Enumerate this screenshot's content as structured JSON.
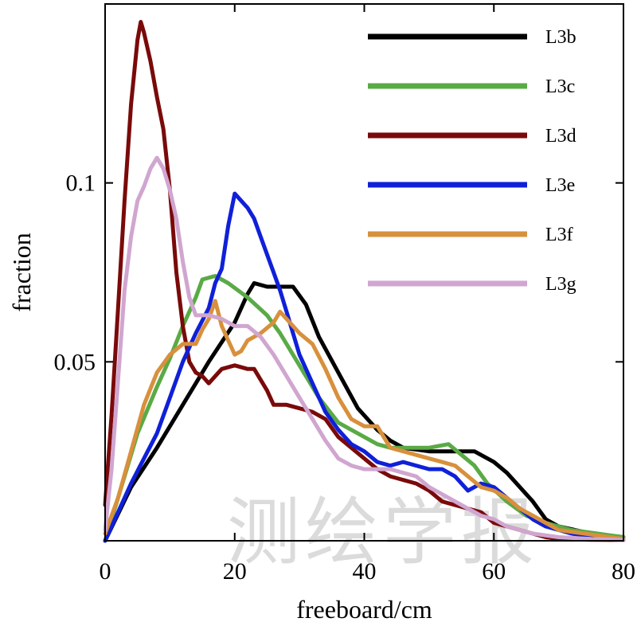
{
  "chart_data": {
    "type": "line",
    "title": "",
    "xlabel": "freeboard/cm",
    "ylabel": "fraction",
    "xlim": [
      0,
      80
    ],
    "ylim": [
      0,
      0.15
    ],
    "xticks": [
      0,
      20,
      40,
      60,
      80
    ],
    "yticks": [
      0.05,
      0.1
    ],
    "ytick_labels": [
      "0.05",
      "0.1"
    ],
    "grid": false,
    "legend_position": "top-right",
    "watermark": "测绘学报",
    "series": [
      {
        "name": "L3b",
        "color": "#000000",
        "points": [
          [
            0,
            0
          ],
          [
            4,
            0.015
          ],
          [
            8,
            0.026
          ],
          [
            12,
            0.038
          ],
          [
            16,
            0.05
          ],
          [
            20,
            0.061
          ],
          [
            22,
            0.069
          ],
          [
            23,
            0.072
          ],
          [
            25,
            0.071
          ],
          [
            27,
            0.071
          ],
          [
            29,
            0.071
          ],
          [
            31,
            0.066
          ],
          [
            33,
            0.057
          ],
          [
            36,
            0.047
          ],
          [
            39,
            0.037
          ],
          [
            42,
            0.031
          ],
          [
            44,
            0.028
          ],
          [
            46,
            0.026
          ],
          [
            50,
            0.025
          ],
          [
            52,
            0.025
          ],
          [
            55,
            0.025
          ],
          [
            57,
            0.025
          ],
          [
            60,
            0.022
          ],
          [
            62,
            0.019
          ],
          [
            64,
            0.015
          ],
          [
            66,
            0.011
          ],
          [
            68,
            0.006
          ],
          [
            70,
            0.004
          ],
          [
            75,
            0.002
          ],
          [
            80,
            0.001
          ]
        ]
      },
      {
        "name": "L3c",
        "color": "#5aaa46",
        "points": [
          [
            0,
            0
          ],
          [
            2,
            0.012
          ],
          [
            5,
            0.03
          ],
          [
            8,
            0.043
          ],
          [
            10,
            0.051
          ],
          [
            12,
            0.06
          ],
          [
            14,
            0.068
          ],
          [
            15,
            0.073
          ],
          [
            17,
            0.074
          ],
          [
            19,
            0.072
          ],
          [
            22,
            0.068
          ],
          [
            25,
            0.063
          ],
          [
            27,
            0.058
          ],
          [
            30,
            0.049
          ],
          [
            33,
            0.04
          ],
          [
            36,
            0.033
          ],
          [
            39,
            0.03
          ],
          [
            42,
            0.027
          ],
          [
            44,
            0.026
          ],
          [
            46,
            0.026
          ],
          [
            48,
            0.026
          ],
          [
            50,
            0.026
          ],
          [
            53,
            0.027
          ],
          [
            55,
            0.024
          ],
          [
            57,
            0.021
          ],
          [
            59,
            0.016
          ],
          [
            62,
            0.011
          ],
          [
            65,
            0.007
          ],
          [
            68,
            0.005
          ],
          [
            72,
            0.003
          ],
          [
            76,
            0.002
          ],
          [
            80,
            0.001
          ]
        ]
      },
      {
        "name": "L3d",
        "color": "#7a0a0a",
        "points": [
          [
            0,
            0.01
          ],
          [
            1,
            0.035
          ],
          [
            2,
            0.065
          ],
          [
            3,
            0.095
          ],
          [
            4,
            0.122
          ],
          [
            5,
            0.14
          ],
          [
            5.5,
            0.145
          ],
          [
            6,
            0.142
          ],
          [
            7,
            0.134
          ],
          [
            8,
            0.124
          ],
          [
            9,
            0.115
          ],
          [
            10,
            0.098
          ],
          [
            11,
            0.075
          ],
          [
            12,
            0.06
          ],
          [
            13,
            0.05
          ],
          [
            14,
            0.047
          ],
          [
            15,
            0.046
          ],
          [
            16,
            0.044
          ],
          [
            17,
            0.046
          ],
          [
            18,
            0.048
          ],
          [
            20,
            0.049
          ],
          [
            22,
            0.048
          ],
          [
            23,
            0.048
          ],
          [
            25,
            0.042
          ],
          [
            26,
            0.038
          ],
          [
            28,
            0.038
          ],
          [
            30,
            0.037
          ],
          [
            32,
            0.036
          ],
          [
            34,
            0.034
          ],
          [
            36,
            0.029
          ],
          [
            38,
            0.026
          ],
          [
            40,
            0.023
          ],
          [
            42,
            0.02
          ],
          [
            44,
            0.018
          ],
          [
            46,
            0.017
          ],
          [
            48,
            0.016
          ],
          [
            50,
            0.014
          ],
          [
            52,
            0.011
          ],
          [
            54,
            0.01
          ],
          [
            56,
            0.009
          ],
          [
            58,
            0.008
          ],
          [
            60,
            0.005
          ],
          [
            62,
            0.004
          ],
          [
            64,
            0.003
          ],
          [
            66,
            0.002
          ],
          [
            68,
            0.001
          ],
          [
            70,
            0.0005
          ],
          [
            75,
            0.0003
          ],
          [
            80,
            0.0002
          ]
        ]
      },
      {
        "name": "L3e",
        "color": "#1020d8",
        "points": [
          [
            0,
            0
          ],
          [
            2,
            0.008
          ],
          [
            4,
            0.016
          ],
          [
            6,
            0.023
          ],
          [
            8,
            0.03
          ],
          [
            10,
            0.04
          ],
          [
            12,
            0.05
          ],
          [
            14,
            0.058
          ],
          [
            16,
            0.065
          ],
          [
            17,
            0.072
          ],
          [
            18,
            0.076
          ],
          [
            19,
            0.088
          ],
          [
            20,
            0.097
          ],
          [
            21,
            0.095
          ],
          [
            22,
            0.093
          ],
          [
            23,
            0.09
          ],
          [
            24,
            0.085
          ],
          [
            25,
            0.08
          ],
          [
            26,
            0.075
          ],
          [
            27,
            0.07
          ],
          [
            28,
            0.064
          ],
          [
            29,
            0.058
          ],
          [
            30,
            0.052
          ],
          [
            32,
            0.044
          ],
          [
            34,
            0.036
          ],
          [
            36,
            0.031
          ],
          [
            38,
            0.027
          ],
          [
            40,
            0.025
          ],
          [
            42,
            0.022
          ],
          [
            44,
            0.021
          ],
          [
            46,
            0.022
          ],
          [
            48,
            0.021
          ],
          [
            50,
            0.02
          ],
          [
            52,
            0.02
          ],
          [
            54,
            0.018
          ],
          [
            56,
            0.014
          ],
          [
            58,
            0.016
          ],
          [
            60,
            0.015
          ],
          [
            62,
            0.012
          ],
          [
            64,
            0.009
          ],
          [
            66,
            0.006
          ],
          [
            68,
            0.004
          ],
          [
            72,
            0.002
          ],
          [
            76,
            0.001
          ],
          [
            80,
            0.0003
          ]
        ]
      },
      {
        "name": "L3f",
        "color": "#d8903c",
        "points": [
          [
            0,
            0.002
          ],
          [
            2,
            0.012
          ],
          [
            4,
            0.025
          ],
          [
            6,
            0.038
          ],
          [
            8,
            0.047
          ],
          [
            10,
            0.052
          ],
          [
            12,
            0.055
          ],
          [
            14,
            0.055
          ],
          [
            15,
            0.059
          ],
          [
            16,
            0.062
          ],
          [
            17,
            0.067
          ],
          [
            18,
            0.06
          ],
          [
            19,
            0.056
          ],
          [
            20,
            0.052
          ],
          [
            21,
            0.053
          ],
          [
            22,
            0.056
          ],
          [
            24,
            0.058
          ],
          [
            26,
            0.061
          ],
          [
            27,
            0.064
          ],
          [
            28,
            0.062
          ],
          [
            30,
            0.058
          ],
          [
            32,
            0.055
          ],
          [
            34,
            0.048
          ],
          [
            36,
            0.04
          ],
          [
            38,
            0.034
          ],
          [
            40,
            0.032
          ],
          [
            42,
            0.032
          ],
          [
            44,
            0.026
          ],
          [
            46,
            0.025
          ],
          [
            48,
            0.024
          ],
          [
            50,
            0.023
          ],
          [
            52,
            0.022
          ],
          [
            54,
            0.021
          ],
          [
            56,
            0.018
          ],
          [
            58,
            0.015
          ],
          [
            60,
            0.014
          ],
          [
            62,
            0.012
          ],
          [
            64,
            0.009
          ],
          [
            66,
            0.007
          ],
          [
            68,
            0.005
          ],
          [
            70,
            0.003
          ],
          [
            74,
            0.002
          ],
          [
            78,
            0.001
          ],
          [
            80,
            0.0005
          ]
        ]
      },
      {
        "name": "L3g",
        "color": "#d0a6d0",
        "points": [
          [
            0,
            0.003
          ],
          [
            1,
            0.02
          ],
          [
            2,
            0.045
          ],
          [
            3,
            0.07
          ],
          [
            4,
            0.085
          ],
          [
            5,
            0.095
          ],
          [
            6,
            0.099
          ],
          [
            7,
            0.104
          ],
          [
            8,
            0.107
          ],
          [
            9,
            0.104
          ],
          [
            10,
            0.098
          ],
          [
            11,
            0.09
          ],
          [
            12,
            0.078
          ],
          [
            13,
            0.068
          ],
          [
            14,
            0.063
          ],
          [
            16,
            0.063
          ],
          [
            18,
            0.062
          ],
          [
            20,
            0.06
          ],
          [
            22,
            0.06
          ],
          [
            24,
            0.057
          ],
          [
            26,
            0.052
          ],
          [
            28,
            0.046
          ],
          [
            30,
            0.04
          ],
          [
            32,
            0.034
          ],
          [
            34,
            0.028
          ],
          [
            36,
            0.023
          ],
          [
            38,
            0.021
          ],
          [
            40,
            0.02
          ],
          [
            42,
            0.02
          ],
          [
            44,
            0.02
          ],
          [
            46,
            0.019
          ],
          [
            48,
            0.018
          ],
          [
            50,
            0.015
          ],
          [
            52,
            0.013
          ],
          [
            54,
            0.011
          ],
          [
            56,
            0.009
          ],
          [
            58,
            0.007
          ],
          [
            60,
            0.006
          ],
          [
            62,
            0.004
          ],
          [
            64,
            0.003
          ],
          [
            66,
            0.002
          ],
          [
            70,
            0.001
          ],
          [
            75,
            0.0005
          ],
          [
            80,
            0.0002
          ]
        ]
      }
    ]
  }
}
